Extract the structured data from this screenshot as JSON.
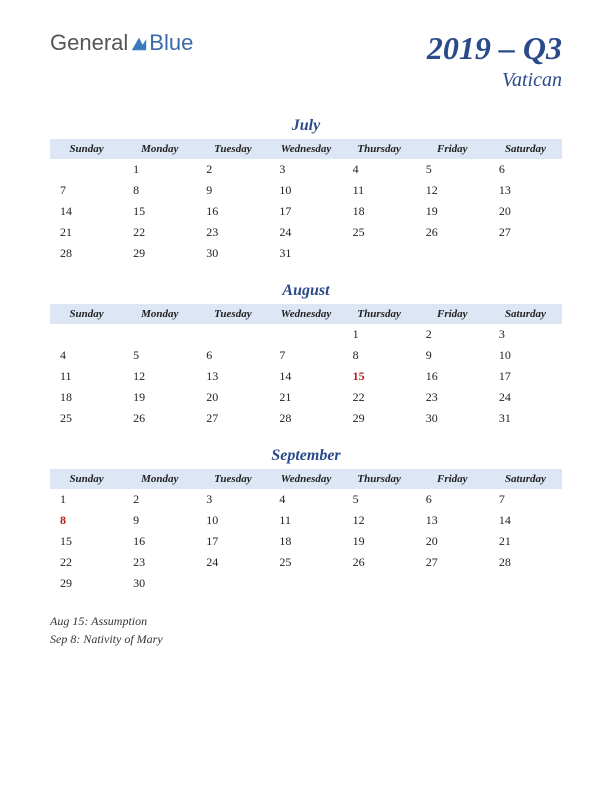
{
  "logo": {
    "part1": "General",
    "part2": "Blue"
  },
  "title": "2019 – Q3",
  "subtitle": "Vatican",
  "day_headers": [
    "Sunday",
    "Monday",
    "Tuesday",
    "Wednesday",
    "Thursday",
    "Friday",
    "Saturday"
  ],
  "colors": {
    "header_bg": "#dce6f5",
    "title_color": "#2a4a8a",
    "holiday_color": "#b02020",
    "text_color": "#222222",
    "background": "#ffffff"
  },
  "months": [
    {
      "name": "July",
      "weeks": [
        [
          "",
          "1",
          "2",
          "3",
          "4",
          "5",
          "6"
        ],
        [
          "7",
          "8",
          "9",
          "10",
          "11",
          "12",
          "13"
        ],
        [
          "14",
          "15",
          "16",
          "17",
          "18",
          "19",
          "20"
        ],
        [
          "21",
          "22",
          "23",
          "24",
          "25",
          "26",
          "27"
        ],
        [
          "28",
          "29",
          "30",
          "31",
          "",
          "",
          ""
        ]
      ],
      "holidays": []
    },
    {
      "name": "August",
      "weeks": [
        [
          "",
          "",
          "",
          "",
          "1",
          "2",
          "3"
        ],
        [
          "4",
          "5",
          "6",
          "7",
          "8",
          "9",
          "10"
        ],
        [
          "11",
          "12",
          "13",
          "14",
          "15",
          "16",
          "17"
        ],
        [
          "18",
          "19",
          "20",
          "21",
          "22",
          "23",
          "24"
        ],
        [
          "25",
          "26",
          "27",
          "28",
          "29",
          "30",
          "31"
        ]
      ],
      "holidays": [
        "15"
      ]
    },
    {
      "name": "September",
      "weeks": [
        [
          "1",
          "2",
          "3",
          "4",
          "5",
          "6",
          "7"
        ],
        [
          "8",
          "9",
          "10",
          "11",
          "12",
          "13",
          "14"
        ],
        [
          "15",
          "16",
          "17",
          "18",
          "19",
          "20",
          "21"
        ],
        [
          "22",
          "23",
          "24",
          "25",
          "26",
          "27",
          "28"
        ],
        [
          "29",
          "30",
          "",
          "",
          "",
          "",
          ""
        ]
      ],
      "holidays": [
        "8"
      ]
    }
  ],
  "notes": [
    "Aug 15: Assumption",
    "Sep 8: Nativity of Mary"
  ]
}
